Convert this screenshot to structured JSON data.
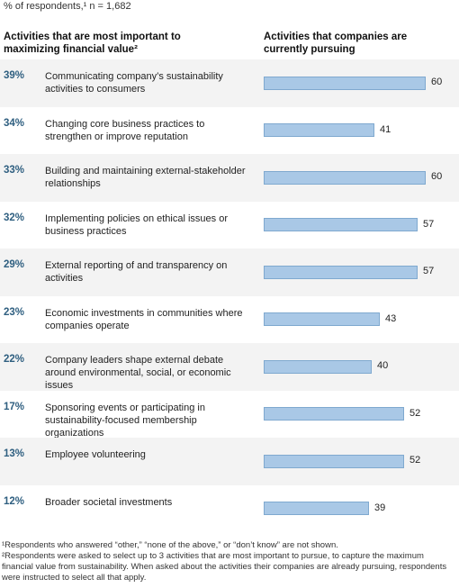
{
  "chart_data": {
    "type": "bar",
    "subtitle": "% of respondents,¹ n = 1,682",
    "left_header": "Activities that are most important to maximizing financial value²",
    "right_header": "Activities that companies are currently pursuing",
    "categories": [
      "Communicating company’s sustainability activities to consumers",
      "Changing core business practices to strengthen or improve reputation",
      "Building and maintaining external-stakeholder relationships",
      "Implementing policies on ethical issues or business practices",
      "External reporting of and transparency on activities",
      "Economic investments in communities where companies operate",
      "Company leaders shape external debate around environmental, social, or economic issues",
      "Sponsoring events or participating in sustainability-focused membership organizations",
      "Employee volunteering",
      "Broader societal investments"
    ],
    "importance": [
      39,
      34,
      33,
      32,
      29,
      23,
      22,
      17,
      13,
      12
    ],
    "importance_labels": [
      "39%",
      "34%",
      "33%",
      "32%",
      "29%",
      "23%",
      "22%",
      "17%",
      "13%",
      "12%"
    ],
    "values": [
      60,
      41,
      60,
      57,
      57,
      43,
      40,
      52,
      52,
      39
    ],
    "color": "#a9c8e6",
    "notes": [
      "¹Respondents who answered “other,” “none of the above,” or “don’t know” are not shown.",
      "²Respondents were asked to select up to 3 activities that are most important to pursue, to capture the maximum financial value from sustainability. When asked about the activities their companies are already pursuing, respondents were instructed to select all that apply."
    ]
  }
}
